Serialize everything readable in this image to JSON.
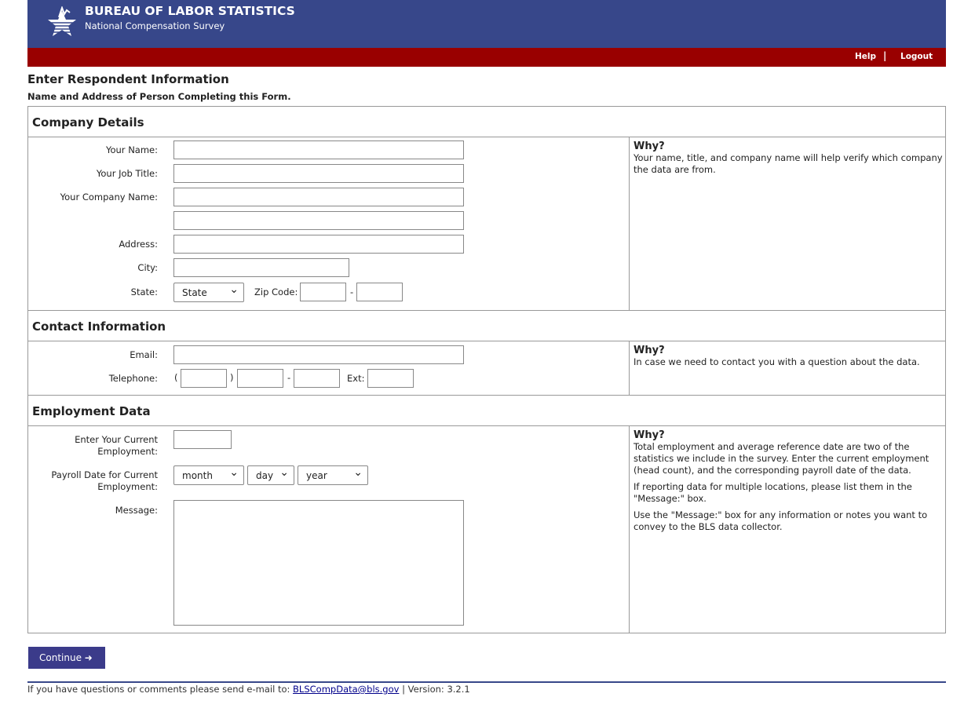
{
  "header": {
    "title": "BUREAU OF LABOR STATISTICS",
    "subtitle": "National Compensation Survey",
    "help": "Help",
    "separator": "|",
    "logout": "Logout"
  },
  "page": {
    "title": "Enter Respondent Information",
    "subtitle": "Name and Address of Person Completing this Form."
  },
  "company": {
    "heading": "Company Details",
    "name": "Your Name:",
    "job": "Your Job Title:",
    "company": "Your Company Name:",
    "address": "Address:",
    "city": "City:",
    "state": "State:",
    "state_value": "State",
    "zip": "Zip Code:",
    "dash": "-",
    "why": "Why?",
    "why_text": "Your name, title, and company name will help verify which company the data are from."
  },
  "contact": {
    "heading": "Contact Information",
    "email": "Email:",
    "telephone": "Telephone:",
    "paren_open": "(",
    "paren_close": ")",
    "dash": "-",
    "ext": "Ext:",
    "why": "Why?",
    "why_text": "In case we need to contact you with a question about the data."
  },
  "employment": {
    "heading": "Employment Data",
    "current": "Enter Your Current Employment:",
    "payroll": "Payroll Date for Current Employment:",
    "month": "month",
    "day": "day",
    "year": "year",
    "message": "Message:",
    "why": "Why?",
    "why_p1": "Total employment and average reference date are two of the statistics we include in the survey. Enter the current employment (head count), and the corresponding payroll date of the data.",
    "why_p2": "If reporting data for multiple locations, please list them in the \"Message:\" box.",
    "why_p3": "Use the \"Message:\" box for any information or notes you want to convey to the BLS data collector."
  },
  "continue": "Continue ➜",
  "footer": {
    "text": "If you have questions or comments please send e-mail to:",
    "email": "BLSCompData@bls.gov",
    "version": "| Version: 3.2.1"
  },
  "colors": {
    "header": "#37478a",
    "bar": "#990000",
    "button": "#3b3b8a"
  }
}
